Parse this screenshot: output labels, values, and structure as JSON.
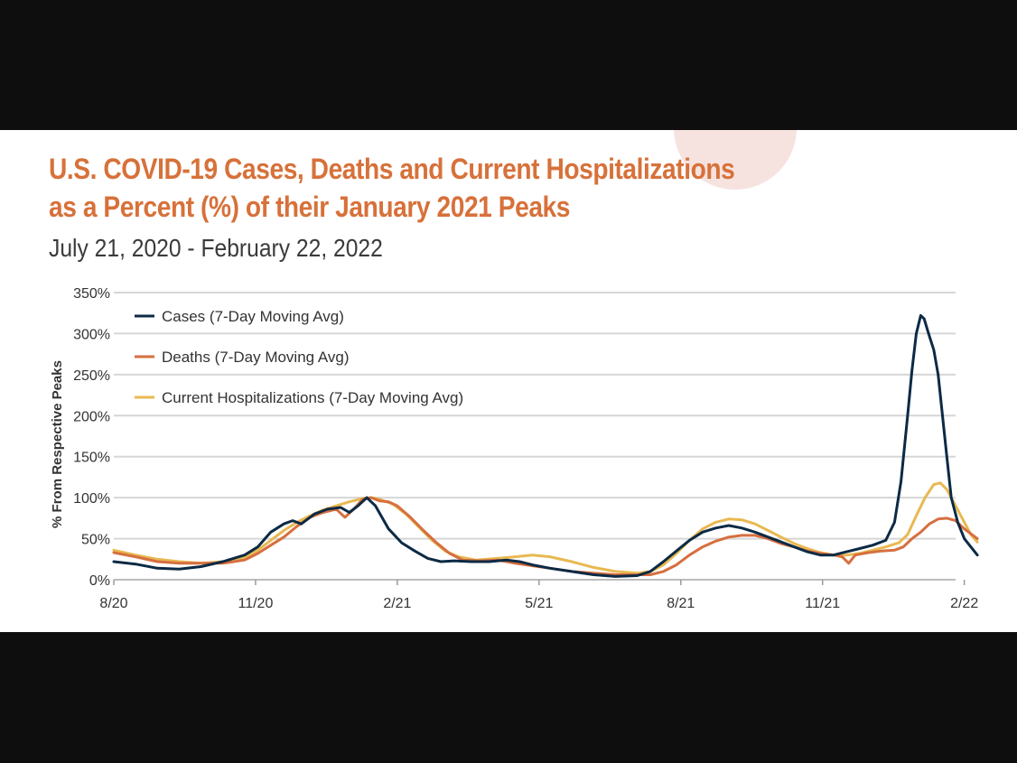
{
  "chart_data": {
    "type": "line",
    "title_lines": [
      "U.S. COVID-19 Cases, Deaths and Current Hospitalizations",
      "as a Percent (%) of their January 2021 Peaks"
    ],
    "subtitle": "July 21, 2020 - February 22, 2022",
    "ylabel": "% From Respective Peaks",
    "xlabel": "",
    "x_unit": "months since 2020-07-21",
    "xlim": [
      0,
      19.3
    ],
    "ylim": [
      0,
      350
    ],
    "y_ticks": [
      0,
      50,
      100,
      150,
      200,
      250,
      300,
      350
    ],
    "y_tick_labels": [
      "0%",
      "50%",
      "100%",
      "150%",
      "200%",
      "250%",
      "300%",
      "350%"
    ],
    "x_ticks": [
      {
        "x": 0.0,
        "label": "8/20"
      },
      {
        "x": 3.25,
        "label": "11/20"
      },
      {
        "x": 6.5,
        "label": "2/21"
      },
      {
        "x": 9.75,
        "label": "5/21"
      },
      {
        "x": 13.0,
        "label": "8/21"
      },
      {
        "x": 16.25,
        "label": "11/21"
      },
      {
        "x": 19.5,
        "label": "2/22"
      }
    ],
    "grid": true,
    "legend_position": "top-left",
    "series": [
      {
        "name": "Cases (7-Day Moving Avg)",
        "color": "#0c2a45",
        "points": [
          [
            0,
            22
          ],
          [
            0.5,
            19
          ],
          [
            1,
            14
          ],
          [
            1.5,
            13
          ],
          [
            2,
            16
          ],
          [
            2.5,
            22
          ],
          [
            3,
            30
          ],
          [
            3.3,
            40
          ],
          [
            3.6,
            58
          ],
          [
            3.9,
            68
          ],
          [
            4.1,
            72
          ],
          [
            4.3,
            68
          ],
          [
            4.6,
            80
          ],
          [
            4.9,
            86
          ],
          [
            5.2,
            88
          ],
          [
            5.4,
            82
          ],
          [
            5.6,
            90
          ],
          [
            5.8,
            100
          ],
          [
            6.0,
            90
          ],
          [
            6.3,
            62
          ],
          [
            6.6,
            45
          ],
          [
            6.9,
            35
          ],
          [
            7.2,
            26
          ],
          [
            7.5,
            22
          ],
          [
            7.8,
            23
          ],
          [
            8.2,
            22
          ],
          [
            8.6,
            22
          ],
          [
            9.0,
            24
          ],
          [
            9.3,
            22
          ],
          [
            9.6,
            18
          ],
          [
            10.0,
            14
          ],
          [
            10.5,
            10
          ],
          [
            11.0,
            6
          ],
          [
            11.5,
            4
          ],
          [
            12.0,
            5
          ],
          [
            12.3,
            10
          ],
          [
            12.6,
            22
          ],
          [
            12.9,
            35
          ],
          [
            13.2,
            48
          ],
          [
            13.5,
            58
          ],
          [
            13.8,
            63
          ],
          [
            14.1,
            66
          ],
          [
            14.4,
            63
          ],
          [
            14.7,
            58
          ],
          [
            15.0,
            52
          ],
          [
            15.3,
            46
          ],
          [
            15.6,
            40
          ],
          [
            15.9,
            34
          ],
          [
            16.2,
            30
          ],
          [
            16.5,
            30
          ],
          [
            16.8,
            34
          ],
          [
            17.1,
            38
          ],
          [
            17.4,
            42
          ],
          [
            17.7,
            48
          ],
          [
            17.9,
            70
          ],
          [
            18.05,
            120
          ],
          [
            18.2,
            200
          ],
          [
            18.3,
            255
          ],
          [
            18.4,
            300
          ],
          [
            18.5,
            322
          ],
          [
            18.58,
            318
          ],
          [
            18.68,
            300
          ],
          [
            18.8,
            280
          ],
          [
            18.9,
            250
          ],
          [
            19.0,
            200
          ],
          [
            19.1,
            150
          ],
          [
            19.2,
            100
          ],
          [
            19.35,
            70
          ],
          [
            19.5,
            50
          ],
          [
            19.65,
            40
          ],
          [
            19.8,
            30
          ]
        ]
      },
      {
        "name": "Deaths (7-Day Moving Avg)",
        "color": "#d66f3f",
        "points": [
          [
            0,
            33
          ],
          [
            0.5,
            28
          ],
          [
            1,
            22
          ],
          [
            1.5,
            20
          ],
          [
            2,
            20
          ],
          [
            2.5,
            20
          ],
          [
            3,
            24
          ],
          [
            3.3,
            32
          ],
          [
            3.6,
            42
          ],
          [
            3.9,
            52
          ],
          [
            4.2,
            65
          ],
          [
            4.5,
            76
          ],
          [
            4.8,
            82
          ],
          [
            5.1,
            86
          ],
          [
            5.3,
            76
          ],
          [
            5.5,
            86
          ],
          [
            5.7,
            98
          ],
          [
            5.9,
            100
          ],
          [
            6.1,
            96
          ],
          [
            6.3,
            95
          ],
          [
            6.5,
            90
          ],
          [
            6.8,
            76
          ],
          [
            7.1,
            60
          ],
          [
            7.4,
            45
          ],
          [
            7.7,
            32
          ],
          [
            8.0,
            24
          ],
          [
            8.4,
            23
          ],
          [
            8.8,
            24
          ],
          [
            9.2,
            20
          ],
          [
            9.6,
            17
          ],
          [
            10.0,
            14
          ],
          [
            10.5,
            10
          ],
          [
            11.0,
            8
          ],
          [
            11.5,
            6
          ],
          [
            12.0,
            6
          ],
          [
            12.3,
            6
          ],
          [
            12.6,
            10
          ],
          [
            12.9,
            18
          ],
          [
            13.2,
            30
          ],
          [
            13.5,
            40
          ],
          [
            13.8,
            47
          ],
          [
            14.1,
            52
          ],
          [
            14.4,
            54
          ],
          [
            14.7,
            54
          ],
          [
            15.0,
            50
          ],
          [
            15.3,
            44
          ],
          [
            15.6,
            40
          ],
          [
            15.9,
            35
          ],
          [
            16.2,
            32
          ],
          [
            16.5,
            30
          ],
          [
            16.7,
            28
          ],
          [
            16.85,
            20
          ],
          [
            17.0,
            30
          ],
          [
            17.3,
            33
          ],
          [
            17.6,
            35
          ],
          [
            17.9,
            36
          ],
          [
            18.1,
            40
          ],
          [
            18.3,
            50
          ],
          [
            18.5,
            58
          ],
          [
            18.7,
            68
          ],
          [
            18.9,
            74
          ],
          [
            19.1,
            75
          ],
          [
            19.3,
            72
          ],
          [
            19.5,
            62
          ],
          [
            19.7,
            54
          ],
          [
            19.8,
            50
          ]
        ]
      },
      {
        "name": "Current Hospitalizations (7-Day Moving Avg)",
        "color": "#e8b952",
        "points": [
          [
            0,
            36
          ],
          [
            0.5,
            30
          ],
          [
            1,
            25
          ],
          [
            1.5,
            22
          ],
          [
            2,
            20
          ],
          [
            2.5,
            22
          ],
          [
            3,
            27
          ],
          [
            3.3,
            36
          ],
          [
            3.6,
            48
          ],
          [
            3.9,
            60
          ],
          [
            4.2,
            70
          ],
          [
            4.5,
            78
          ],
          [
            4.8,
            85
          ],
          [
            5.1,
            90
          ],
          [
            5.4,
            95
          ],
          [
            5.7,
            99
          ],
          [
            5.9,
            100
          ],
          [
            6.1,
            98
          ],
          [
            6.4,
            92
          ],
          [
            6.7,
            80
          ],
          [
            7.0,
            64
          ],
          [
            7.3,
            48
          ],
          [
            7.6,
            35
          ],
          [
            7.9,
            28
          ],
          [
            8.3,
            24
          ],
          [
            8.8,
            26
          ],
          [
            9.2,
            28
          ],
          [
            9.6,
            30
          ],
          [
            10.0,
            28
          ],
          [
            10.5,
            22
          ],
          [
            11.0,
            15
          ],
          [
            11.5,
            10
          ],
          [
            12.0,
            8
          ],
          [
            12.3,
            10
          ],
          [
            12.6,
            18
          ],
          [
            12.9,
            32
          ],
          [
            13.2,
            48
          ],
          [
            13.5,
            62
          ],
          [
            13.8,
            70
          ],
          [
            14.1,
            74
          ],
          [
            14.4,
            73
          ],
          [
            14.7,
            68
          ],
          [
            15.0,
            60
          ],
          [
            15.3,
            52
          ],
          [
            15.6,
            44
          ],
          [
            15.9,
            38
          ],
          [
            16.2,
            33
          ],
          [
            16.5,
            30
          ],
          [
            16.8,
            30
          ],
          [
            17.1,
            32
          ],
          [
            17.4,
            36
          ],
          [
            17.7,
            40
          ],
          [
            18.0,
            45
          ],
          [
            18.2,
            55
          ],
          [
            18.4,
            78
          ],
          [
            18.6,
            100
          ],
          [
            18.8,
            116
          ],
          [
            18.95,
            118
          ],
          [
            19.1,
            110
          ],
          [
            19.3,
            90
          ],
          [
            19.5,
            70
          ],
          [
            19.65,
            55
          ],
          [
            19.8,
            46
          ]
        ]
      }
    ]
  }
}
